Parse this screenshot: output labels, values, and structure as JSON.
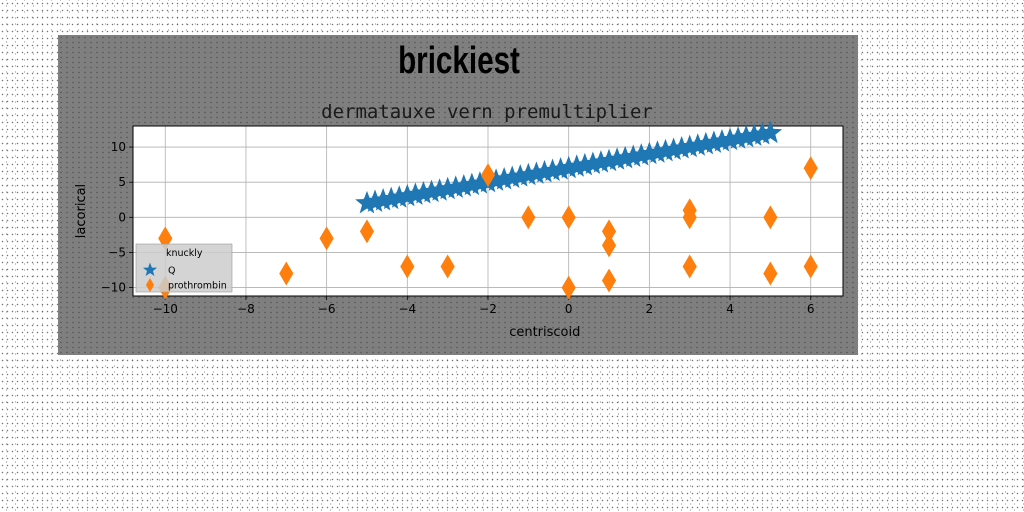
{
  "figure": {
    "suptitle": "brickiest",
    "title": "dermatauxe vern premultiplier"
  },
  "chart_data": {
    "type": "scatter",
    "title": "dermatauxe vern premultiplier",
    "suptitle": "brickiest",
    "xlabel": "centriscoid",
    "ylabel": "lacorical",
    "xlim": [
      -10.8,
      6.8
    ],
    "ylim": [
      -11.2,
      13.0
    ],
    "xticks": [
      -10,
      -8,
      -6,
      -4,
      -2,
      0,
      2,
      4,
      6
    ],
    "yticks": [
      -10,
      -5,
      0,
      5,
      10
    ],
    "grid": true,
    "legend": {
      "title": "knuckly",
      "location": "lower-left"
    },
    "series": [
      {
        "name": "Q",
        "marker": "star",
        "color": "#1f77b4",
        "x": [
          -5.0,
          -4.8,
          -4.6,
          -4.4,
          -4.2,
          -4.0,
          -3.8,
          -3.6,
          -3.4,
          -3.2,
          -3.0,
          -2.8,
          -2.6,
          -2.4,
          -2.2,
          -2.0,
          -1.8,
          -1.6,
          -1.4,
          -1.2,
          -1.0,
          -0.8,
          -0.6,
          -0.4,
          -0.2,
          0.0,
          0.2,
          0.4,
          0.6,
          0.8,
          1.0,
          1.2,
          1.4,
          1.6,
          1.8,
          2.0,
          2.2,
          2.4,
          2.6,
          2.8,
          3.0,
          3.2,
          3.4,
          3.6,
          3.8,
          4.0,
          4.2,
          4.4,
          4.6,
          4.8,
          5.0
        ],
        "y": [
          2.0,
          2.2,
          2.4,
          2.6,
          2.8,
          3.0,
          3.2,
          3.4,
          3.6,
          3.8,
          4.0,
          4.2,
          4.4,
          4.6,
          4.8,
          5.0,
          5.2,
          5.4,
          5.6,
          5.8,
          6.0,
          6.2,
          6.4,
          6.6,
          6.8,
          7.0,
          7.2,
          7.4,
          7.6,
          7.8,
          8.0,
          8.2,
          8.4,
          8.6,
          8.8,
          9.0,
          9.2,
          9.4,
          9.6,
          9.8,
          10.0,
          10.2,
          10.4,
          10.6,
          10.8,
          11.0,
          11.2,
          11.4,
          11.6,
          11.8,
          12.0
        ]
      },
      {
        "name": "prothrombin",
        "marker": "thin_diamond",
        "color": "#ff7f0e",
        "x": [
          -10,
          -10,
          -7,
          -6,
          -5,
          -4,
          -3,
          -2,
          -1,
          0,
          0,
          1,
          1,
          1,
          3,
          3,
          3,
          5,
          5,
          6,
          6
        ],
        "y": [
          -3,
          -10,
          -8,
          -3,
          -2,
          -7,
          -7,
          6,
          0,
          0,
          -10,
          -2,
          -4,
          -9,
          1,
          0,
          -7,
          0,
          -8,
          7,
          -7
        ]
      }
    ]
  }
}
